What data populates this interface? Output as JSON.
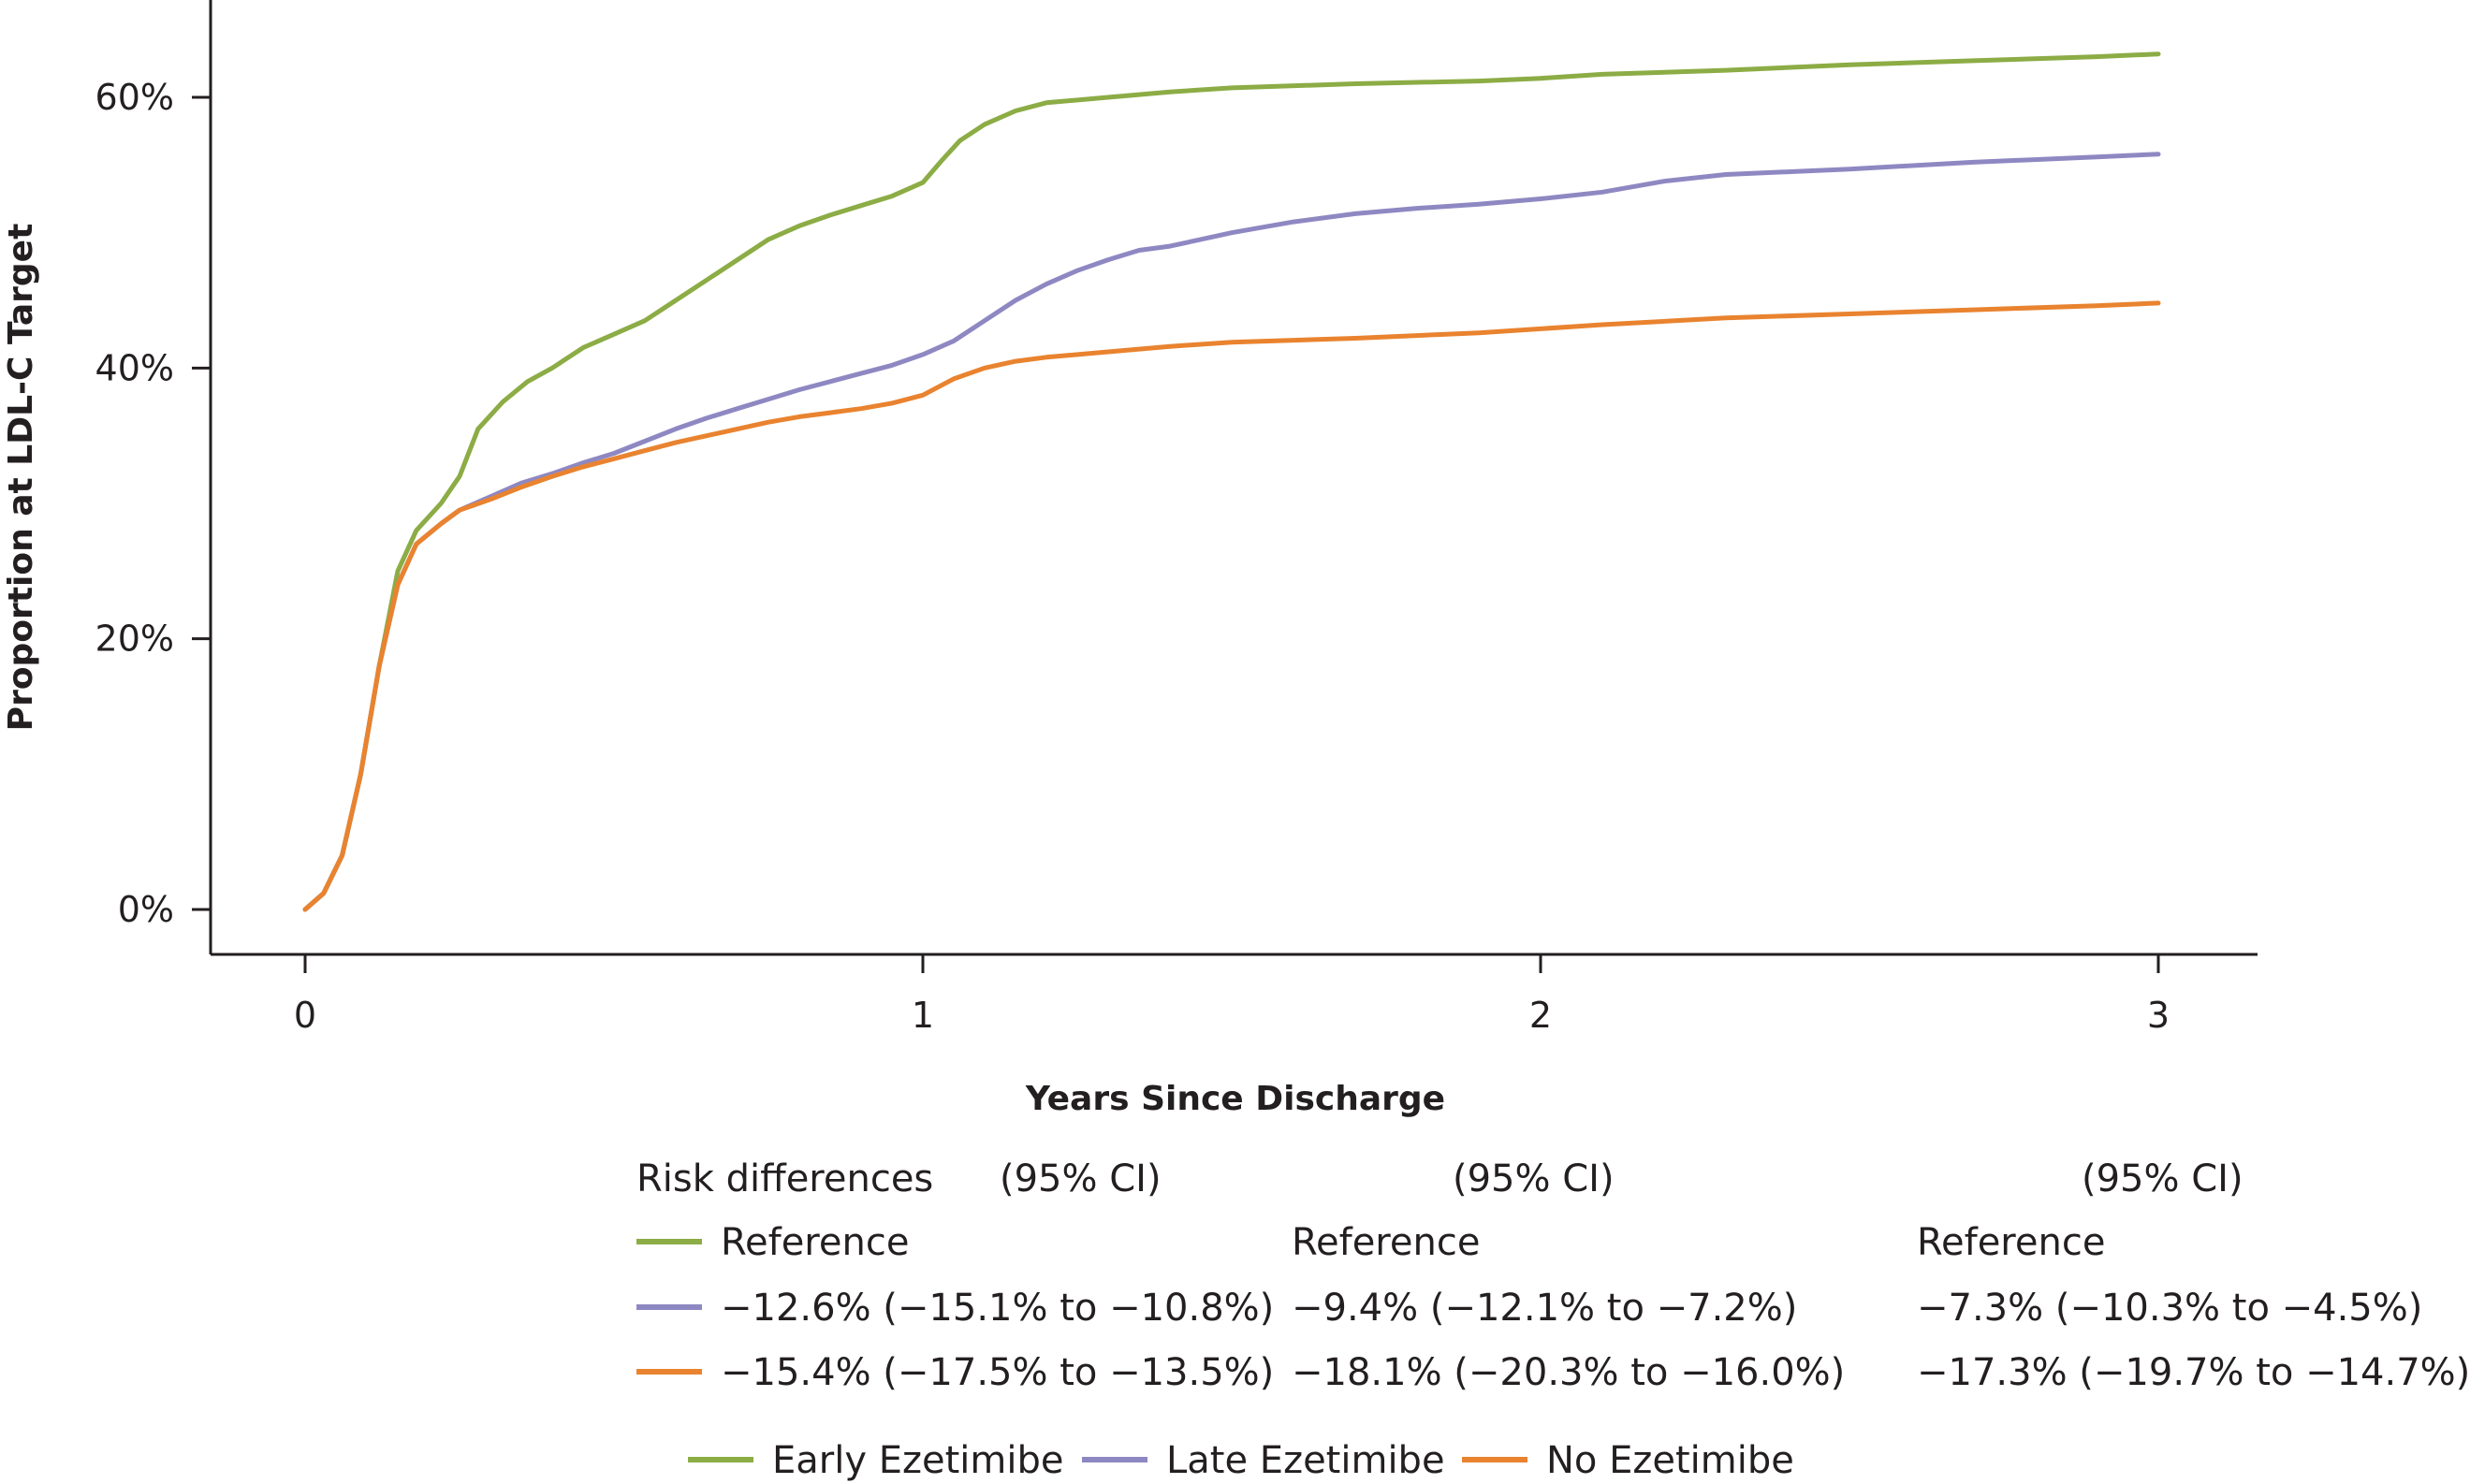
{
  "chart_data": {
    "type": "line",
    "title": "",
    "xlabel": "Years Since Discharge",
    "ylabel": "Proportion at LDL-C Target",
    "xlim": [
      0,
      3
    ],
    "ylim": [
      0,
      0.64
    ],
    "xticks": [
      0,
      1,
      2,
      3
    ],
    "xtick_labels": [
      "0",
      "1",
      "2",
      "3"
    ],
    "yticks": [
      0,
      0.2,
      0.4,
      0.6
    ],
    "ytick_labels": [
      "0%",
      "20%",
      "40%",
      "60%"
    ],
    "legend_position": "bottom",
    "series": [
      {
        "name": "Early Ezetimibe",
        "color": "#8cac45",
        "x": [
          0,
          0.03,
          0.06,
          0.09,
          0.12,
          0.15,
          0.18,
          0.22,
          0.25,
          0.28,
          0.32,
          0.36,
          0.4,
          0.45,
          0.5,
          0.55,
          0.6,
          0.65,
          0.7,
          0.75,
          0.8,
          0.85,
          0.9,
          0.95,
          1.0,
          1.03,
          1.06,
          1.1,
          1.15,
          1.2,
          1.3,
          1.4,
          1.5,
          1.7,
          1.9,
          2.0,
          2.1,
          2.3,
          2.5,
          2.7,
          2.9,
          3.0
        ],
        "y": [
          0,
          0.012,
          0.04,
          0.1,
          0.18,
          0.25,
          0.28,
          0.3,
          0.32,
          0.355,
          0.375,
          0.39,
          0.4,
          0.415,
          0.425,
          0.435,
          0.45,
          0.465,
          0.48,
          0.495,
          0.505,
          0.513,
          0.52,
          0.527,
          0.537,
          0.553,
          0.568,
          0.58,
          0.59,
          0.596,
          0.6,
          0.604,
          0.607,
          0.61,
          0.612,
          0.614,
          0.617,
          0.62,
          0.624,
          0.627,
          0.63,
          0.632
        ]
      },
      {
        "name": "Late Ezetimibe",
        "color": "#8e88c2",
        "x": [
          0,
          0.03,
          0.06,
          0.09,
          0.12,
          0.15,
          0.18,
          0.22,
          0.25,
          0.3,
          0.35,
          0.4,
          0.45,
          0.5,
          0.55,
          0.6,
          0.65,
          0.7,
          0.75,
          0.8,
          0.85,
          0.9,
          0.95,
          1.0,
          1.05,
          1.1,
          1.15,
          1.2,
          1.25,
          1.3,
          1.35,
          1.4,
          1.5,
          1.6,
          1.7,
          1.8,
          1.9,
          2.0,
          2.1,
          2.2,
          2.3,
          2.5,
          2.7,
          2.9,
          3.0
        ],
        "y": [
          0,
          0.012,
          0.04,
          0.1,
          0.18,
          0.24,
          0.27,
          0.285,
          0.295,
          0.305,
          0.315,
          0.322,
          0.33,
          0.337,
          0.346,
          0.355,
          0.363,
          0.37,
          0.377,
          0.384,
          0.39,
          0.396,
          0.402,
          0.41,
          0.42,
          0.435,
          0.45,
          0.462,
          0.472,
          0.48,
          0.487,
          0.49,
          0.5,
          0.508,
          0.514,
          0.518,
          0.521,
          0.525,
          0.53,
          0.538,
          0.543,
          0.547,
          0.552,
          0.556,
          0.558
        ]
      },
      {
        "name": "No Ezetimibe",
        "color": "#e9832f",
        "x": [
          0,
          0.03,
          0.06,
          0.09,
          0.12,
          0.15,
          0.18,
          0.22,
          0.25,
          0.3,
          0.35,
          0.4,
          0.45,
          0.5,
          0.55,
          0.6,
          0.65,
          0.7,
          0.75,
          0.8,
          0.85,
          0.9,
          0.95,
          1.0,
          1.05,
          1.1,
          1.15,
          1.2,
          1.3,
          1.4,
          1.5,
          1.7,
          1.9,
          2.0,
          2.1,
          2.3,
          2.5,
          2.7,
          2.9,
          3.0
        ],
        "y": [
          0,
          0.012,
          0.04,
          0.1,
          0.18,
          0.24,
          0.27,
          0.285,
          0.295,
          0.303,
          0.312,
          0.32,
          0.327,
          0.333,
          0.339,
          0.345,
          0.35,
          0.355,
          0.36,
          0.364,
          0.367,
          0.37,
          0.374,
          0.38,
          0.392,
          0.4,
          0.405,
          0.408,
          0.412,
          0.416,
          0.419,
          0.422,
          0.426,
          0.429,
          0.432,
          0.437,
          0.44,
          0.443,
          0.446,
          0.448
        ]
      }
    ]
  },
  "risk_table": {
    "header_label": "Risk differences",
    "ci_headers": [
      "(95% CI)",
      "(95% CI)",
      "(95% CI)"
    ],
    "rows": [
      {
        "series": "Early Ezetimibe",
        "color": "#8cac45",
        "values": [
          "Reference",
          "Reference",
          "Reference"
        ]
      },
      {
        "series": "Late Ezetimibe",
        "color": "#8e88c2",
        "values": [
          "−12.6% (−15.1% to −10.8%)",
          "−9.4% (−12.1% to −7.2%)",
          "−7.3% (−10.3% to −4.5%)"
        ]
      },
      {
        "series": "No Ezetimibe",
        "color": "#e9832f",
        "values": [
          "−15.4% (−17.5% to −13.5%)",
          "−18.1% (−20.3% to −16.0%)",
          "−17.3% (−19.7% to −14.7%)"
        ]
      }
    ]
  },
  "legend": {
    "items": [
      {
        "label": "Early Ezetimibe",
        "color": "#8cac45"
      },
      {
        "label": "Late Ezetimibe",
        "color": "#8e88c2"
      },
      {
        "label": "No Ezetimibe",
        "color": "#e9832f"
      }
    ]
  }
}
